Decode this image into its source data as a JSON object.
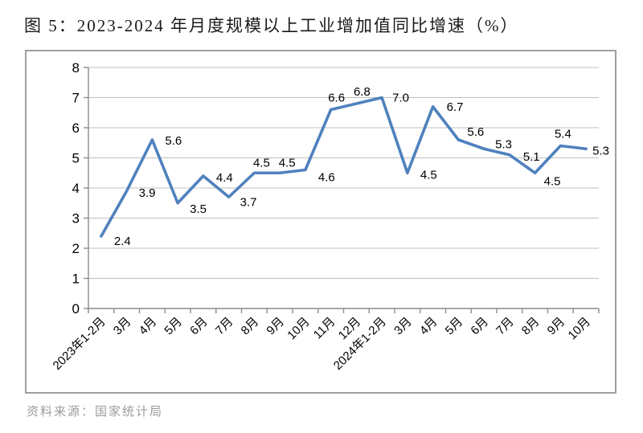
{
  "page": {
    "title": "图 5：2023-2024 年月度规模以上工业增加值同比增速（%）",
    "source_note": "资料来源：国家统计局"
  },
  "chart_data": {
    "type": "line",
    "title": "图 5：2023-2024 年月度规模以上工业增加值同比增速（%）",
    "categories": [
      "2023年1-2月",
      "3月",
      "4月",
      "5月",
      "6月",
      "7月",
      "8月",
      "9月",
      "10月",
      "11月",
      "12月",
      "2024年1-2月",
      "3月",
      "4月",
      "5月",
      "6月",
      "7月",
      "8月",
      "9月",
      "10月"
    ],
    "values": [
      2.4,
      3.9,
      5.6,
      3.5,
      4.4,
      3.7,
      4.5,
      4.5,
      4.6,
      6.6,
      6.8,
      7.0,
      4.5,
      6.7,
      5.6,
      5.3,
      5.1,
      4.5,
      5.4,
      5.3
    ],
    "value_labels": [
      "2.4",
      "3.9",
      "5.6",
      "3.5",
      "4.4",
      "3.7",
      "4.5",
      "4.5",
      "4.6",
      "6.6",
      "6.8",
      "7.0",
      "4.5",
      "6.7",
      "5.6",
      "5.3",
      "5.1",
      "4.5",
      "5.4",
      "5.3"
    ],
    "ylim": [
      0,
      8
    ],
    "y_ticks": [
      0,
      1,
      2,
      3,
      4,
      5,
      6,
      7,
      8
    ],
    "xlabel": "",
    "ylabel": "",
    "grid": true,
    "legend": false,
    "data_labels": true,
    "x_label_rotation": -45,
    "colors": {
      "line": "#4f81bd",
      "grid": "#c0c0c0",
      "axis": "#8c8c8c",
      "label": "#000000"
    }
  }
}
